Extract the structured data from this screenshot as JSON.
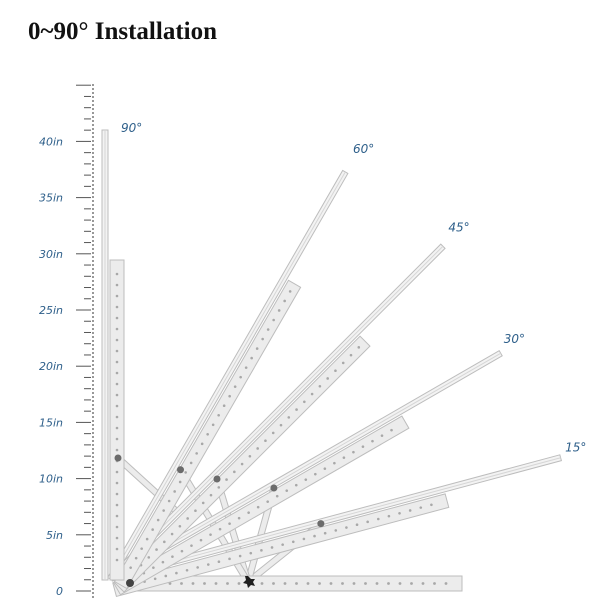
{
  "title": "0~90° Installation",
  "colors": {
    "label": "#2e5f8a",
    "ruler": "#555555",
    "rail_light": "#ececec",
    "rail_edge": "#bdbdbd",
    "rail_hole": "#a8a8a8",
    "knob": "#1f1f1f"
  },
  "ruler": {
    "ticks": [
      "0",
      "5in",
      "10in",
      "15in",
      "20in",
      "25in",
      "30in",
      "35in",
      "40in"
    ]
  },
  "angles": [
    {
      "label": "90°",
      "degrees": 90
    },
    {
      "label": "60°",
      "degrees": 60
    },
    {
      "label": "45°",
      "degrees": 45
    },
    {
      "label": "30°",
      "degrees": 30
    },
    {
      "label": "15°",
      "degrees": 15
    }
  ]
}
